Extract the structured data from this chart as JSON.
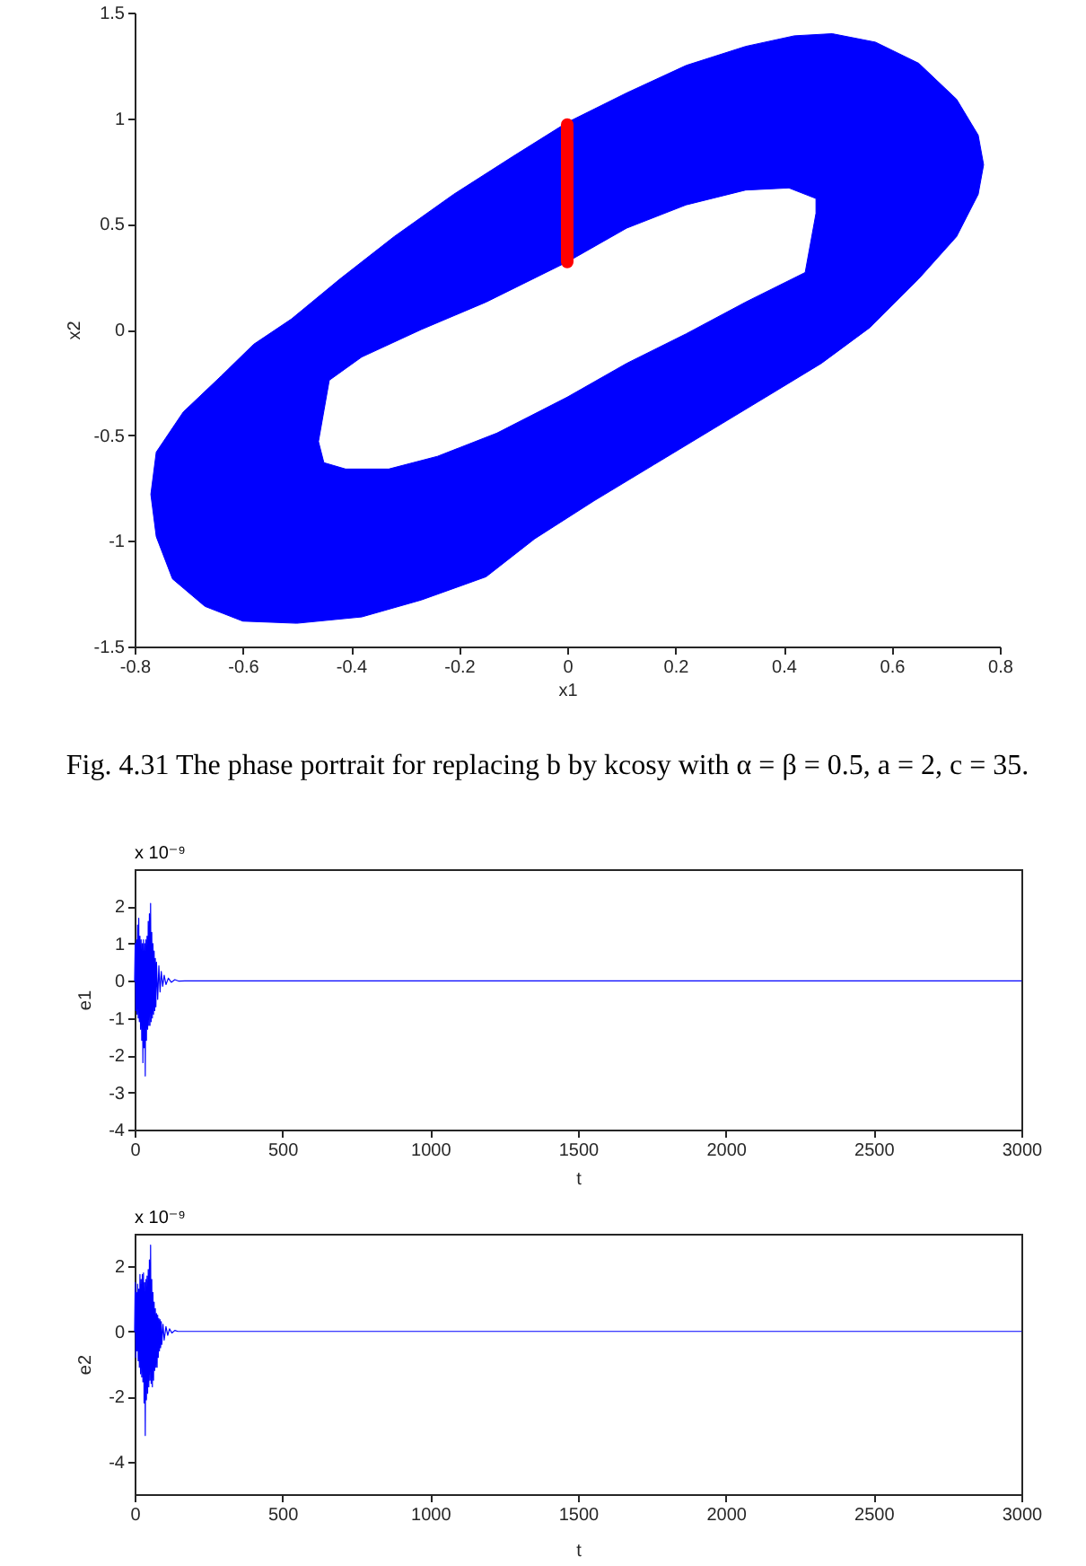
{
  "chart_data": [
    {
      "type": "area",
      "xlabel": "x1",
      "ylabel": "x2",
      "xlim": [
        -0.8,
        0.8
      ],
      "ylim": [
        -1.5,
        1.5
      ],
      "xticks": [
        -0.8,
        -0.6,
        -0.4,
        -0.2,
        0,
        0.2,
        0.4,
        0.6,
        0.8
      ],
      "yticks": [
        -1.5,
        -1,
        -0.5,
        0,
        0.5,
        1,
        1.5
      ],
      "series": [
        {
          "type": "area",
          "color": "#0000ff",
          "x": [
            -0.77,
            -0.76,
            -0.71,
            -0.64,
            -0.58,
            -0.51,
            -0.42,
            -0.32,
            -0.21,
            -0.1,
            0,
            0.11,
            0.22,
            0.33,
            0.42,
            0.49,
            0.57,
            0.65,
            0.72,
            0.76,
            0.77,
            0.76,
            0.72,
            0.65,
            0.56,
            0.47,
            0.38,
            0.27,
            0.16,
            0.05,
            -0.06,
            -0.15,
            -0.27,
            -0.38,
            -0.5,
            -0.6,
            -0.67,
            -0.73,
            -0.76,
            -0.77,
            -0.46,
            -0.45,
            -0.41,
            -0.33,
            -0.24,
            -0.13,
            0,
            0.11,
            0.22,
            0.33,
            0.44,
            0.46,
            0.46,
            0.41,
            0.33,
            0.22,
            0.11,
            0,
            -0.15,
            -0.27,
            -0.38,
            -0.44,
            -0.46,
            -0.77
          ],
          "values": [
            -0.78,
            -0.58,
            -0.39,
            -0.22,
            -0.07,
            0.05,
            0.24,
            0.44,
            0.64,
            0.82,
            0.98,
            1.12,
            1.25,
            1.34,
            1.39,
            1.4,
            1.36,
            1.26,
            1.09,
            0.92,
            0.78,
            0.64,
            0.44,
            0.24,
            0.01,
            -0.16,
            -0.3,
            -0.47,
            -0.64,
            -0.81,
            -0.99,
            -1.17,
            -1.28,
            -1.36,
            -1.39,
            -1.38,
            -1.31,
            -1.18,
            -0.98,
            -0.78,
            -0.53,
            -0.63,
            -0.66,
            -0.66,
            -0.6,
            -0.49,
            -0.32,
            -0.16,
            -0.02,
            0.13,
            0.27,
            0.55,
            0.62,
            0.67,
            0.66,
            0.59,
            0.48,
            0.32,
            0.13,
            0,
            -0.13,
            -0.24,
            -0.53,
            -0.78
          ]
        },
        {
          "type": "line",
          "color": "#ff0000",
          "x": [
            0,
            0
          ],
          "values": [
            0.32,
            0.97
          ]
        }
      ],
      "annotations": [
        "Fig. 4.31 The phase portrait for replacing b by kcosy with α = β = 0.5, a = 2, c = 35."
      ]
    },
    {
      "type": "line",
      "xlabel": "t",
      "ylabel": "e1",
      "xlim": [
        0,
        3000
      ],
      "ylim": [
        -4,
        3
      ],
      "xticks": [
        0,
        500,
        1000,
        1500,
        2000,
        2500,
        3000
      ],
      "yticks": [
        -4,
        -3,
        -2,
        -1,
        0,
        1,
        2
      ],
      "x": [
        0,
        2,
        4,
        6,
        8,
        10,
        12,
        14,
        16,
        18,
        20,
        22,
        24,
        26,
        28,
        30,
        32,
        34,
        36,
        38,
        40,
        42,
        44,
        46,
        48,
        50,
        52,
        54,
        56,
        58,
        60,
        62,
        64,
        66,
        68,
        70,
        72,
        74,
        78,
        82,
        86,
        90,
        95,
        100,
        106,
        114,
        124,
        136,
        150,
        170,
        3000
      ],
      "series": [
        {
          "color": "#0000ff",
          "values": [
            0,
            1.0,
            -0.8,
            1.1,
            -0.9,
            1.5,
            -1.0,
            1.68,
            -1.1,
            1.2,
            -1.3,
            1.1,
            -1.6,
            1.0,
            -2.2,
            1.1,
            -1.8,
            1.0,
            -2.56,
            1.1,
            -1.6,
            1.2,
            -1.3,
            1.6,
            -1.2,
            1.8,
            -1.2,
            2.08,
            -1.1,
            1.3,
            -1.0,
            1.0,
            -0.9,
            0.8,
            -0.8,
            0.6,
            -0.7,
            0.5,
            -0.5,
            0.4,
            -0.3,
            0.25,
            -0.15,
            0.15,
            -0.1,
            0.07,
            -0.04,
            0.03,
            -0.01,
            0,
            0
          ]
        }
      ],
      "annotations": [
        "x 10⁻⁹"
      ]
    },
    {
      "type": "line",
      "xlabel": "t",
      "ylabel": "e2",
      "xlim": [
        0,
        3000
      ],
      "ylim": [
        -5,
        3
      ],
      "xticks": [
        0,
        500,
        1000,
        1500,
        2000,
        2500,
        3000
      ],
      "yticks": [
        -4,
        -2,
        0,
        2
      ],
      "x": [
        0,
        2,
        4,
        6,
        8,
        10,
        12,
        14,
        16,
        18,
        20,
        22,
        24,
        26,
        28,
        30,
        32,
        34,
        36,
        38,
        40,
        42,
        44,
        46,
        48,
        50,
        52,
        54,
        56,
        58,
        60,
        62,
        64,
        66,
        68,
        70,
        72,
        74,
        76,
        78,
        80,
        82,
        84,
        86,
        88,
        90,
        92,
        96,
        100,
        106,
        112,
        118,
        126,
        136,
        146,
        3000
      ],
      "series": [
        {
          "color": "#0000ff",
          "values": [
            0,
            1.5,
            -0.8,
            1.2,
            -0.6,
            1.45,
            -0.9,
            1.3,
            -1.1,
            1.75,
            -1.3,
            1.6,
            -1.4,
            1.75,
            -1.55,
            1.8,
            -2.2,
            1.5,
            -3.2,
            1.6,
            -2.1,
            1.7,
            -1.9,
            1.9,
            -1.7,
            2.2,
            -1.5,
            2.65,
            -1.6,
            1.6,
            -1.7,
            1.2,
            -1.5,
            0.9,
            -1.2,
            0.7,
            -1.1,
            0.55,
            -1.1,
            0.5,
            -0.8,
            0.4,
            -0.6,
            0.36,
            -0.5,
            0.3,
            -0.4,
            0.22,
            -0.27,
            0.15,
            -0.12,
            0.08,
            -0.05,
            0.03,
            0,
            0
          ]
        }
      ],
      "annotations": [
        "x 10⁻⁹"
      ]
    }
  ]
}
